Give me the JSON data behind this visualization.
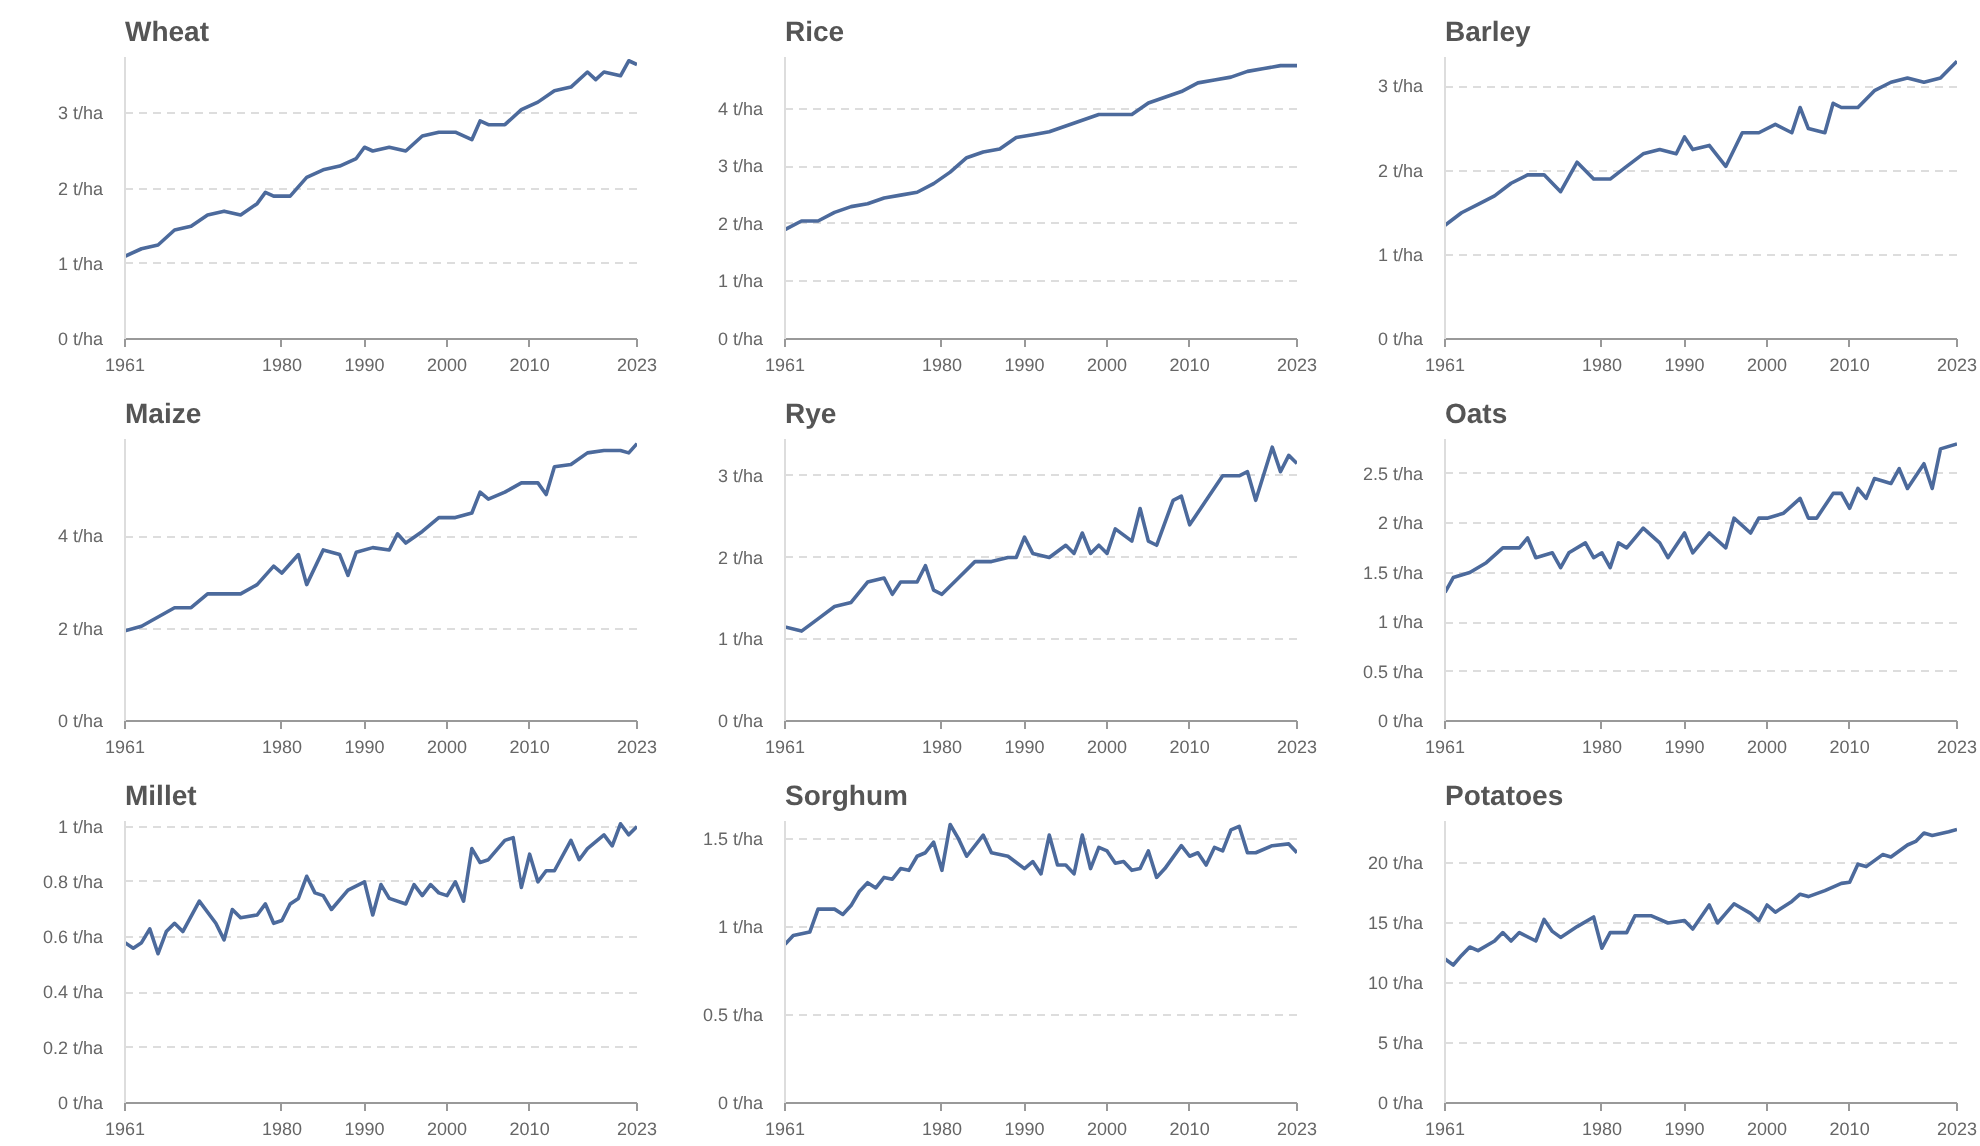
{
  "chart_data": [
    {
      "type": "line",
      "title": "Wheat",
      "color": "#4c6a9c",
      "grid": "y",
      "xlim": [
        1961,
        2023
      ],
      "ylim": [
        0,
        3.75
      ],
      "xticks": [
        1961,
        1980,
        1990,
        2000,
        2010,
        2023
      ],
      "yticks": [
        {
          "value": 0,
          "label": "0 t/ha"
        },
        {
          "value": 1,
          "label": "1 t/ha"
        },
        {
          "value": 2,
          "label": "2 t/ha"
        },
        {
          "value": 3,
          "label": "3 t/ha"
        }
      ],
      "x": [
        1961,
        1963,
        1965,
        1967,
        1969,
        1971,
        1973,
        1975,
        1977,
        1978,
        1979,
        1981,
        1983,
        1985,
        1987,
        1989,
        1990,
        1991,
        1993,
        1995,
        1997,
        1999,
        2001,
        2003,
        2004,
        2005,
        2007,
        2009,
        2011,
        2013,
        2015,
        2017,
        2018,
        2019,
        2021,
        2022,
        2023
      ],
      "values": [
        1.1,
        1.2,
        1.25,
        1.45,
        1.5,
        1.65,
        1.7,
        1.65,
        1.8,
        1.95,
        1.9,
        1.9,
        2.15,
        2.25,
        2.3,
        2.4,
        2.55,
        2.5,
        2.55,
        2.5,
        2.7,
        2.75,
        2.75,
        2.65,
        2.9,
        2.85,
        2.85,
        3.05,
        3.15,
        3.3,
        3.35,
        3.55,
        3.45,
        3.55,
        3.5,
        3.7,
        3.65
      ]
    },
    {
      "type": "line",
      "title": "Rice",
      "color": "#4c6a9c",
      "grid": "y",
      "xlim": [
        1961,
        2023
      ],
      "ylim": [
        0,
        4.9
      ],
      "xticks": [
        1961,
        1980,
        1990,
        2000,
        2010,
        2023
      ],
      "yticks": [
        {
          "value": 0,
          "label": "0 t/ha"
        },
        {
          "value": 1,
          "label": "1 t/ha"
        },
        {
          "value": 2,
          "label": "2 t/ha"
        },
        {
          "value": 3,
          "label": "3 t/ha"
        },
        {
          "value": 4,
          "label": "4 t/ha"
        }
      ],
      "x": [
        1961,
        1963,
        1965,
        1967,
        1969,
        1971,
        1973,
        1975,
        1977,
        1979,
        1981,
        1983,
        1985,
        1987,
        1989,
        1991,
        1993,
        1995,
        1997,
        1999,
        2001,
        2003,
        2005,
        2007,
        2009,
        2011,
        2013,
        2015,
        2017,
        2019,
        2021,
        2023
      ],
      "values": [
        1.9,
        2.05,
        2.05,
        2.2,
        2.3,
        2.35,
        2.45,
        2.5,
        2.55,
        2.7,
        2.9,
        3.15,
        3.25,
        3.3,
        3.5,
        3.55,
        3.6,
        3.7,
        3.8,
        3.9,
        3.9,
        3.9,
        4.1,
        4.2,
        4.3,
        4.45,
        4.5,
        4.55,
        4.65,
        4.7,
        4.75,
        4.75
      ]
    },
    {
      "type": "line",
      "title": "Barley",
      "color": "#4c6a9c",
      "grid": "y",
      "xlim": [
        1961,
        2023
      ],
      "ylim": [
        0,
        3.35
      ],
      "xticks": [
        1961,
        1980,
        1990,
        2000,
        2010,
        2023
      ],
      "yticks": [
        {
          "value": 0,
          "label": "0 t/ha"
        },
        {
          "value": 1,
          "label": "1 t/ha"
        },
        {
          "value": 2,
          "label": "2 t/ha"
        },
        {
          "value": 3,
          "label": "3 t/ha"
        }
      ],
      "x": [
        1961,
        1963,
        1965,
        1967,
        1969,
        1971,
        1973,
        1975,
        1977,
        1979,
        1981,
        1983,
        1985,
        1987,
        1989,
        1990,
        1991,
        1993,
        1995,
        1997,
        1999,
        2001,
        2003,
        2004,
        2005,
        2007,
        2008,
        2009,
        2011,
        2013,
        2015,
        2017,
        2019,
        2021,
        2023
      ],
      "values": [
        1.35,
        1.5,
        1.6,
        1.7,
        1.85,
        1.95,
        1.95,
        1.75,
        2.1,
        1.9,
        1.9,
        2.05,
        2.2,
        2.25,
        2.2,
        2.4,
        2.25,
        2.3,
        2.05,
        2.45,
        2.45,
        2.55,
        2.45,
        2.75,
        2.5,
        2.45,
        2.8,
        2.75,
        2.75,
        2.95,
        3.05,
        3.1,
        3.05,
        3.1,
        3.3
      ]
    },
    {
      "type": "line",
      "title": "Maize",
      "color": "#4c6a9c",
      "grid": "y",
      "xlim": [
        1961,
        2023
      ],
      "ylim": [
        0,
        6.1
      ],
      "xticks": [
        1961,
        1980,
        1990,
        2000,
        2010,
        2023
      ],
      "yticks": [
        {
          "value": 0,
          "label": "0 t/ha"
        },
        {
          "value": 2,
          "label": "2 t/ha"
        },
        {
          "value": 4,
          "label": "4 t/ha"
        }
      ],
      "x": [
        1961,
        1963,
        1965,
        1967,
        1969,
        1971,
        1973,
        1975,
        1977,
        1979,
        1980,
        1981,
        1982,
        1983,
        1985,
        1987,
        1988,
        1989,
        1991,
        1993,
        1994,
        1995,
        1997,
        1999,
        2001,
        2003,
        2004,
        2005,
        2007,
        2009,
        2011,
        2012,
        2013,
        2015,
        2017,
        2019,
        2021,
        2022,
        2023
      ],
      "values": [
        1.95,
        2.05,
        2.25,
        2.45,
        2.45,
        2.75,
        2.75,
        2.75,
        2.95,
        3.35,
        3.2,
        3.4,
        3.6,
        2.95,
        3.7,
        3.6,
        3.15,
        3.65,
        3.75,
        3.7,
        4.05,
        3.85,
        4.1,
        4.4,
        4.4,
        4.5,
        4.95,
        4.8,
        4.95,
        5.15,
        5.15,
        4.9,
        5.5,
        5.55,
        5.8,
        5.85,
        5.85,
        5.8,
        6.0
      ]
    },
    {
      "type": "line",
      "title": "Rye",
      "color": "#4c6a9c",
      "grid": "y",
      "xlim": [
        1961,
        2023
      ],
      "ylim": [
        0,
        3.45
      ],
      "xticks": [
        1961,
        1980,
        1990,
        2000,
        2010,
        2023
      ],
      "yticks": [
        {
          "value": 0,
          "label": "0 t/ha"
        },
        {
          "value": 1,
          "label": "1 t/ha"
        },
        {
          "value": 2,
          "label": "2 t/ha"
        },
        {
          "value": 3,
          "label": "3 t/ha"
        }
      ],
      "x": [
        1961,
        1963,
        1965,
        1967,
        1969,
        1971,
        1973,
        1974,
        1975,
        1977,
        1978,
        1979,
        1980,
        1982,
        1984,
        1986,
        1988,
        1989,
        1990,
        1991,
        1993,
        1995,
        1996,
        1997,
        1998,
        1999,
        2000,
        2001,
        2003,
        2004,
        2005,
        2006,
        2008,
        2009,
        2010,
        2012,
        2014,
        2016,
        2017,
        2018,
        2020,
        2021,
        2022,
        2023
      ],
      "values": [
        1.15,
        1.1,
        1.25,
        1.4,
        1.45,
        1.7,
        1.75,
        1.55,
        1.7,
        1.7,
        1.9,
        1.6,
        1.55,
        1.75,
        1.95,
        1.95,
        2.0,
        2.0,
        2.25,
        2.05,
        2.0,
        2.15,
        2.05,
        2.3,
        2.05,
        2.15,
        2.05,
        2.35,
        2.2,
        2.6,
        2.2,
        2.15,
        2.7,
        2.75,
        2.4,
        2.7,
        3.0,
        3.0,
        3.05,
        2.7,
        3.35,
        3.05,
        3.25,
        3.15
      ]
    },
    {
      "type": "line",
      "title": "Oats",
      "color": "#4c6a9c",
      "grid": "y",
      "xlim": [
        1961,
        2023
      ],
      "ylim": [
        0,
        2.85
      ],
      "xticks": [
        1961,
        1980,
        1990,
        2000,
        2010,
        2023
      ],
      "yticks": [
        {
          "value": 0,
          "label": "0 t/ha"
        },
        {
          "value": 0.5,
          "label": "0.5 t/ha"
        },
        {
          "value": 1,
          "label": "1 t/ha"
        },
        {
          "value": 1.5,
          "label": "1.5 t/ha"
        },
        {
          "value": 2,
          "label": "2 t/ha"
        },
        {
          "value": 2.5,
          "label": "2.5 t/ha"
        }
      ],
      "x": [
        1961,
        1962,
        1964,
        1966,
        1968,
        1970,
        1971,
        1972,
        1974,
        1975,
        1976,
        1978,
        1979,
        1980,
        1981,
        1982,
        1983,
        1985,
        1987,
        1988,
        1990,
        1991,
        1993,
        1995,
        1996,
        1998,
        1999,
        2000,
        2002,
        2004,
        2005,
        2006,
        2008,
        2009,
        2010,
        2011,
        2012,
        2013,
        2015,
        2016,
        2017,
        2019,
        2020,
        2021,
        2023
      ],
      "values": [
        1.3,
        1.45,
        1.5,
        1.6,
        1.75,
        1.75,
        1.85,
        1.65,
        1.7,
        1.55,
        1.7,
        1.8,
        1.65,
        1.7,
        1.55,
        1.8,
        1.75,
        1.95,
        1.8,
        1.65,
        1.9,
        1.7,
        1.9,
        1.75,
        2.05,
        1.9,
        2.05,
        2.05,
        2.1,
        2.25,
        2.05,
        2.05,
        2.3,
        2.3,
        2.15,
        2.35,
        2.25,
        2.45,
        2.4,
        2.55,
        2.35,
        2.6,
        2.35,
        2.75,
        2.8
      ]
    },
    {
      "type": "line",
      "title": "Millet",
      "color": "#4c6a9c",
      "grid": "y",
      "xlim": [
        1961,
        2023
      ],
      "ylim": [
        0,
        1.02
      ],
      "xticks": [
        1961,
        1980,
        1990,
        2000,
        2010,
        2023
      ],
      "yticks": [
        {
          "value": 0,
          "label": "0 t/ha"
        },
        {
          "value": 0.2,
          "label": "0.2 t/ha"
        },
        {
          "value": 0.4,
          "label": "0.4 t/ha"
        },
        {
          "value": 0.6,
          "label": "0.6 t/ha"
        },
        {
          "value": 0.8,
          "label": "0.8 t/ha"
        },
        {
          "value": 1,
          "label": "1 t/ha"
        }
      ],
      "x": [
        1961,
        1962,
        1963,
        1964,
        1965,
        1966,
        1967,
        1968,
        1970,
        1972,
        1973,
        1974,
        1975,
        1977,
        1978,
        1979,
        1980,
        1981,
        1982,
        1983,
        1984,
        1985,
        1986,
        1988,
        1990,
        1991,
        1992,
        1993,
        1995,
        1996,
        1997,
        1998,
        1999,
        2000,
        2001,
        2002,
        2003,
        2004,
        2005,
        2007,
        2008,
        2009,
        2010,
        2011,
        2012,
        2013,
        2015,
        2016,
        2017,
        2019,
        2020,
        2021,
        2022,
        2023
      ],
      "values": [
        0.58,
        0.56,
        0.58,
        0.63,
        0.54,
        0.62,
        0.65,
        0.62,
        0.73,
        0.65,
        0.59,
        0.7,
        0.67,
        0.68,
        0.72,
        0.65,
        0.66,
        0.72,
        0.74,
        0.82,
        0.76,
        0.75,
        0.7,
        0.77,
        0.8,
        0.68,
        0.79,
        0.74,
        0.72,
        0.79,
        0.75,
        0.79,
        0.76,
        0.75,
        0.8,
        0.73,
        0.92,
        0.87,
        0.88,
        0.95,
        0.96,
        0.78,
        0.9,
        0.8,
        0.84,
        0.84,
        0.95,
        0.88,
        0.92,
        0.97,
        0.93,
        1.01,
        0.97,
        1.0
      ]
    },
    {
      "type": "line",
      "title": "Sorghum",
      "color": "#4c6a9c",
      "grid": "y",
      "xlim": [
        1961,
        2023
      ],
      "ylim": [
        0,
        1.6
      ],
      "xticks": [
        1961,
        1980,
        1990,
        2000,
        2010,
        2023
      ],
      "yticks": [
        {
          "value": 0,
          "label": "0 t/ha"
        },
        {
          "value": 0.5,
          "label": "0.5 t/ha"
        },
        {
          "value": 1,
          "label": "1 t/ha"
        },
        {
          "value": 1.5,
          "label": "1.5 t/ha"
        }
      ],
      "x": [
        1961,
        1962,
        1964,
        1965,
        1967,
        1968,
        1969,
        1970,
        1971,
        1972,
        1973,
        1974,
        1975,
        1976,
        1977,
        1978,
        1979,
        1980,
        1981,
        1982,
        1983,
        1985,
        1986,
        1988,
        1990,
        1991,
        1992,
        1993,
        1994,
        1995,
        1996,
        1997,
        1998,
        1999,
        2000,
        2001,
        2002,
        2003,
        2004,
        2005,
        2006,
        2007,
        2009,
        2010,
        2011,
        2012,
        2013,
        2014,
        2015,
        2016,
        2017,
        2018,
        2020,
        2022,
        2023
      ],
      "values": [
        0.9,
        0.95,
        0.97,
        1.1,
        1.1,
        1.07,
        1.12,
        1.2,
        1.25,
        1.22,
        1.28,
        1.27,
        1.33,
        1.32,
        1.4,
        1.42,
        1.48,
        1.32,
        1.58,
        1.5,
        1.4,
        1.52,
        1.42,
        1.4,
        1.33,
        1.37,
        1.3,
        1.52,
        1.35,
        1.35,
        1.3,
        1.52,
        1.33,
        1.45,
        1.43,
        1.36,
        1.37,
        1.32,
        1.33,
        1.43,
        1.28,
        1.33,
        1.46,
        1.4,
        1.42,
        1.35,
        1.45,
        1.43,
        1.55,
        1.57,
        1.42,
        1.42,
        1.46,
        1.47,
        1.42
      ]
    },
    {
      "type": "line",
      "title": "Potatoes",
      "color": "#4c6a9c",
      "grid": "y",
      "xlim": [
        1961,
        2023
      ],
      "ylim": [
        0,
        23.5
      ],
      "xticks": [
        1961,
        1980,
        1990,
        2000,
        2010,
        2023
      ],
      "yticks": [
        {
          "value": 0,
          "label": "0 t/ha"
        },
        {
          "value": 5,
          "label": "5 t/ha"
        },
        {
          "value": 10,
          "label": "10 t/ha"
        },
        {
          "value": 15,
          "label": "15 t/ha"
        },
        {
          "value": 20,
          "label": "20 t/ha"
        }
      ],
      "x": [
        1961,
        1962,
        1963,
        1964,
        1965,
        1967,
        1968,
        1969,
        1970,
        1972,
        1973,
        1974,
        1975,
        1977,
        1979,
        1980,
        1981,
        1983,
        1984,
        1986,
        1988,
        1990,
        1991,
        1993,
        1994,
        1995,
        1996,
        1998,
        1999,
        2000,
        2001,
        2003,
        2004,
        2005,
        2007,
        2009,
        2010,
        2011,
        2012,
        2014,
        2015,
        2017,
        2018,
        2019,
        2020,
        2022,
        2023
      ],
      "values": [
        12.0,
        11.5,
        12.3,
        13.0,
        12.7,
        13.5,
        14.2,
        13.5,
        14.2,
        13.5,
        15.3,
        14.3,
        13.8,
        14.7,
        15.5,
        12.9,
        14.2,
        14.2,
        15.6,
        15.6,
        15.0,
        15.2,
        14.5,
        16.5,
        15.0,
        15.8,
        16.6,
        15.8,
        15.2,
        16.5,
        15.9,
        16.8,
        17.4,
        17.2,
        17.7,
        18.3,
        18.4,
        19.9,
        19.7,
        20.7,
        20.5,
        21.5,
        21.8,
        22.5,
        22.3,
        22.6,
        22.8
      ]
    }
  ]
}
